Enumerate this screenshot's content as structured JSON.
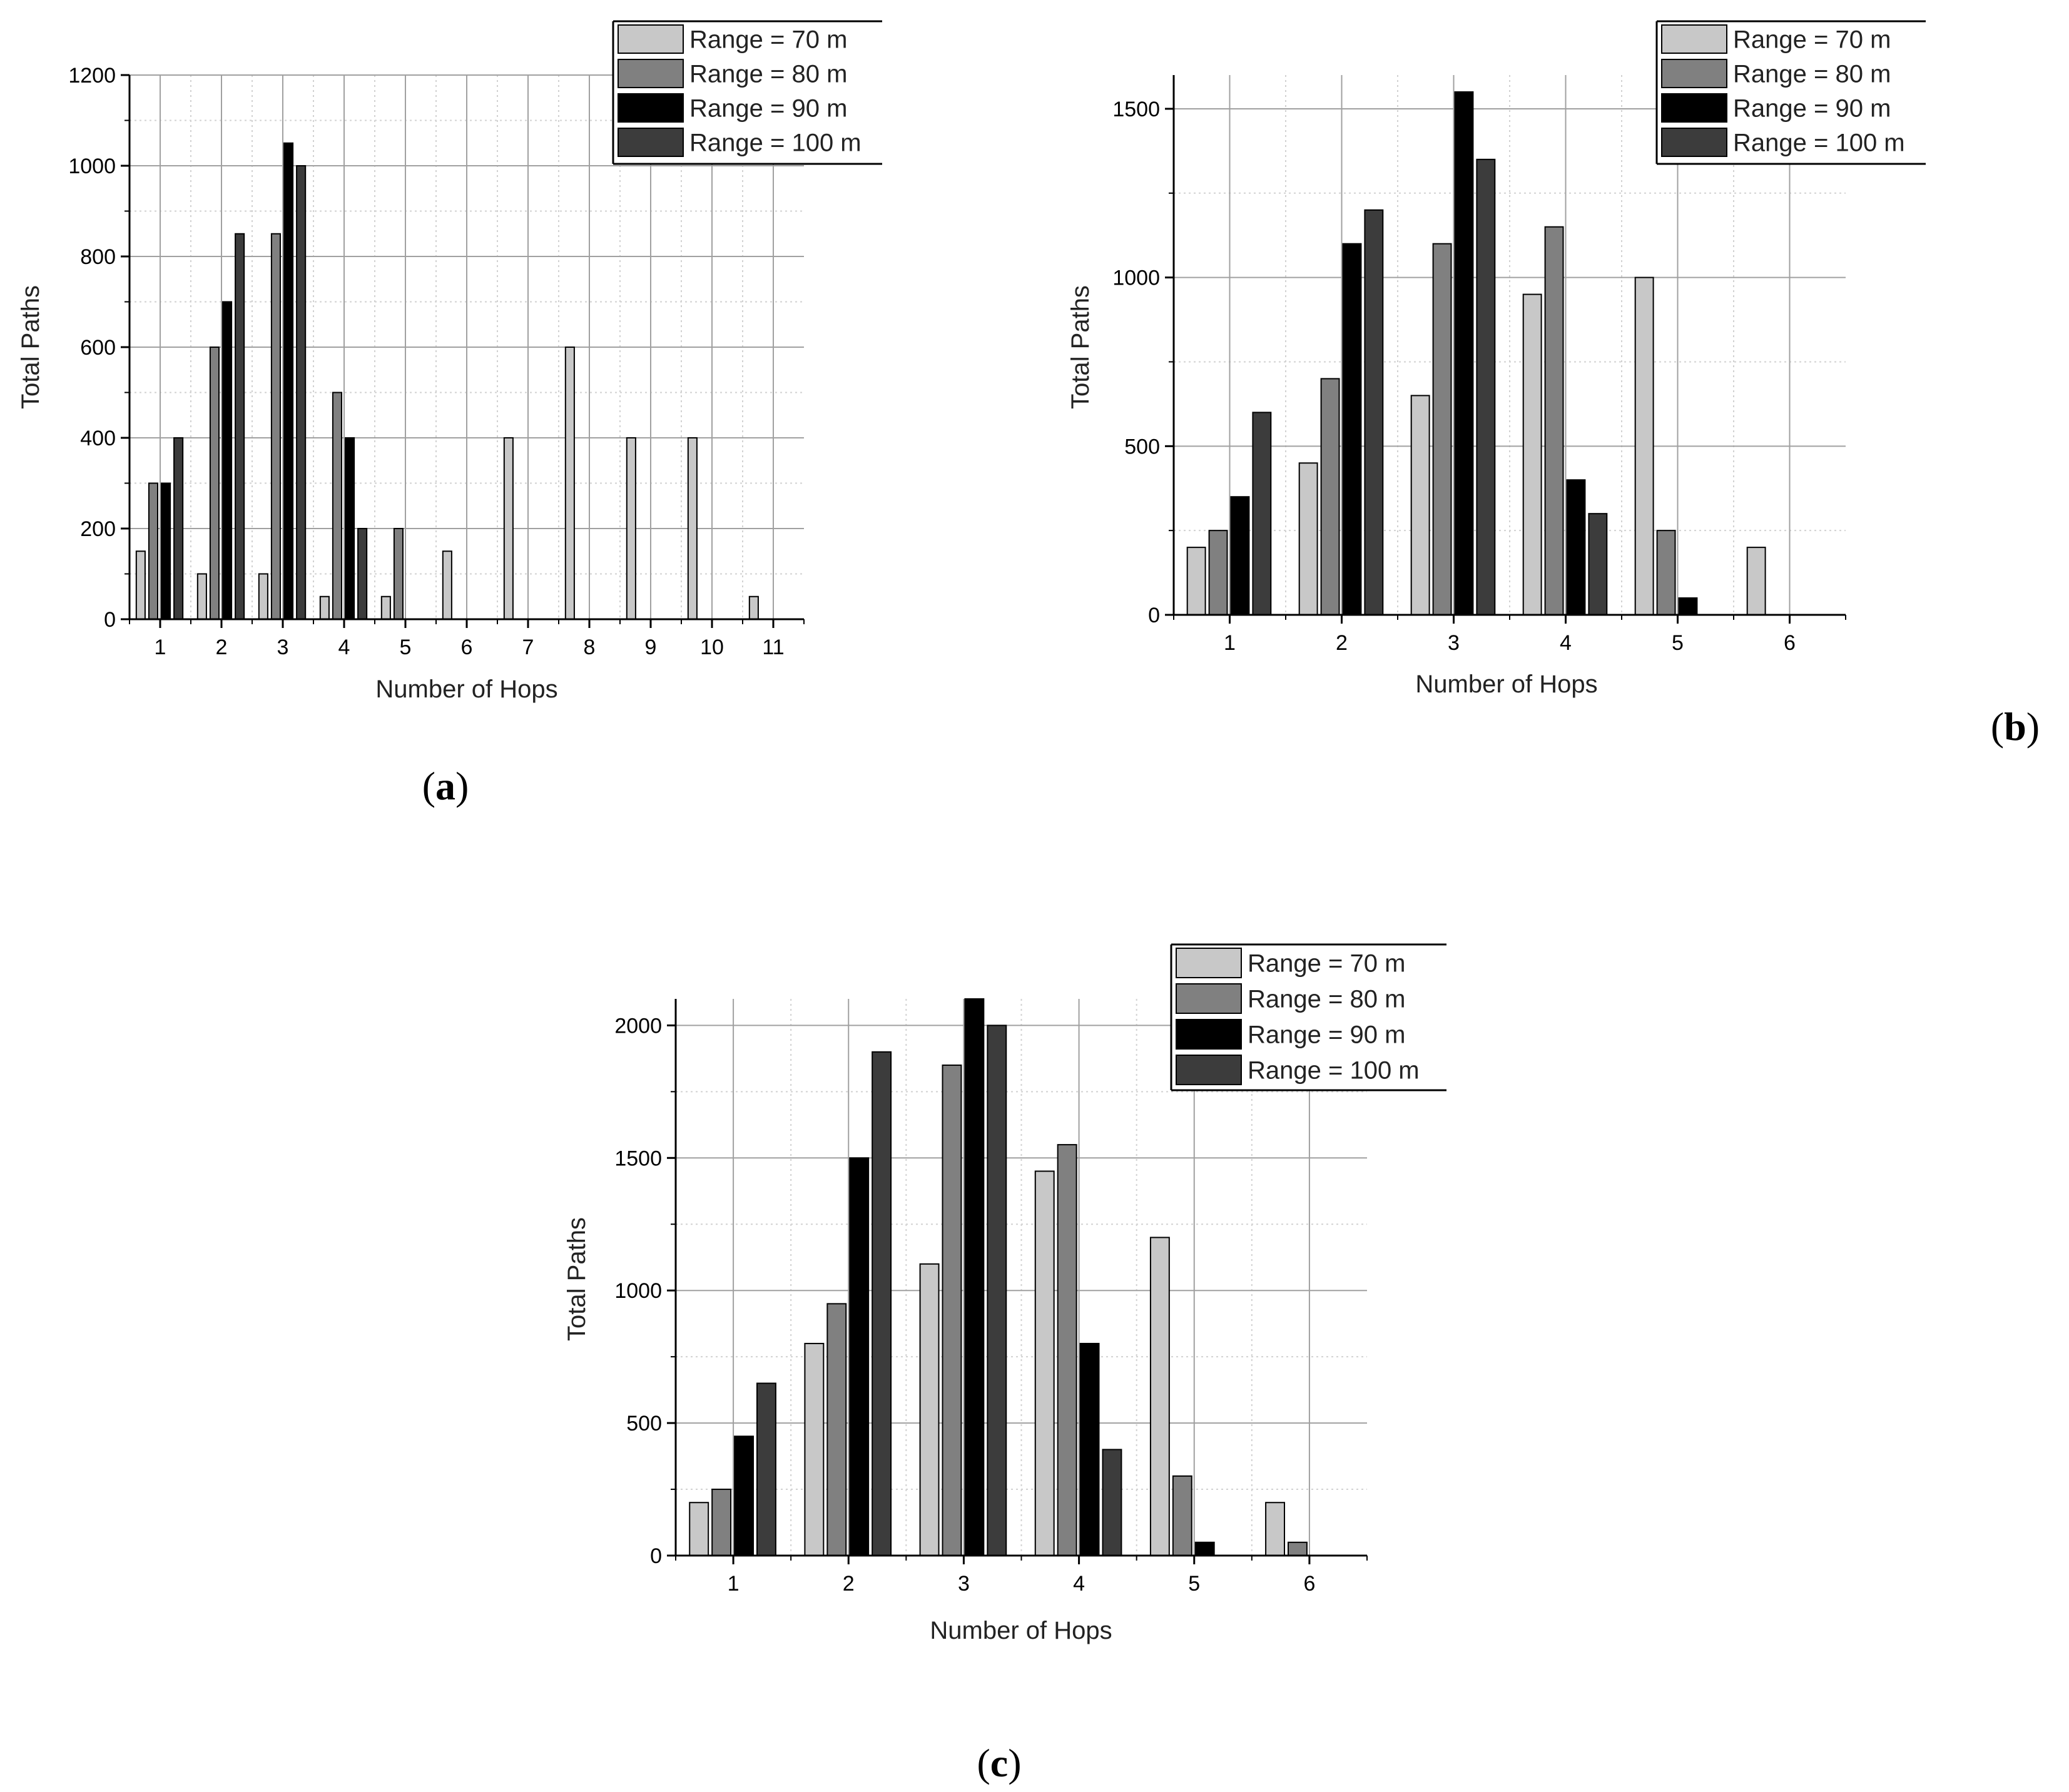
{
  "colors": {
    "range70": "#c8c8c8",
    "range80": "#808080",
    "range90": "#000000",
    "range100": "#3c3c3c",
    "axis": "#000000",
    "grid_major": "#a0a0a0",
    "grid_minor": "#d2d2d2",
    "background": "#ffffff"
  },
  "chart_data": [
    {
      "id": "a",
      "type": "bar",
      "panel_label": "(a)",
      "xlabel": "Number of Hops",
      "ylabel": "Total Paths",
      "categories": [
        "1",
        "2",
        "3",
        "4",
        "5",
        "6",
        "7",
        "8",
        "9",
        "10",
        "11"
      ],
      "ylim": [
        0,
        1200
      ],
      "yticks": [
        0,
        200,
        400,
        600,
        800,
        1000,
        1200
      ],
      "grid": true,
      "legend_position": "top-right",
      "series": [
        {
          "name": "Range = 70 m",
          "color_key": "range70",
          "values": [
            150,
            100,
            100,
            50,
            50,
            150,
            400,
            600,
            400,
            400,
            50
          ]
        },
        {
          "name": "Range = 80 m",
          "color_key": "range80",
          "values": [
            300,
            600,
            850,
            500,
            200,
            0,
            0,
            0,
            0,
            0,
            0
          ]
        },
        {
          "name": "Range = 90 m",
          "color_key": "range90",
          "values": [
            300,
            700,
            1050,
            400,
            0,
            0,
            0,
            0,
            0,
            0,
            0
          ]
        },
        {
          "name": "Range = 100 m",
          "color_key": "range100",
          "values": [
            400,
            850,
            1000,
            200,
            0,
            0,
            0,
            0,
            0,
            0,
            0
          ]
        }
      ]
    },
    {
      "id": "b",
      "type": "bar",
      "panel_label": "(b)",
      "xlabel": "Number of Hops",
      "ylabel": "Total Paths",
      "categories": [
        "1",
        "2",
        "3",
        "4",
        "5",
        "6"
      ],
      "ylim": [
        0,
        1600
      ],
      "yticks": [
        0,
        500,
        1000,
        1500
      ],
      "grid": true,
      "legend_position": "top-right",
      "series": [
        {
          "name": "Range = 70 m",
          "color_key": "range70",
          "values": [
            200,
            450,
            650,
            950,
            1000,
            200
          ]
        },
        {
          "name": "Range = 80 m",
          "color_key": "range80",
          "values": [
            250,
            700,
            1100,
            1150,
            250,
            0
          ]
        },
        {
          "name": "Range = 90 m",
          "color_key": "range90",
          "values": [
            350,
            1100,
            1550,
            400,
            50,
            0
          ]
        },
        {
          "name": "Range = 100 m",
          "color_key": "range100",
          "values": [
            600,
            1200,
            1350,
            300,
            0,
            0
          ]
        }
      ]
    },
    {
      "id": "c",
      "type": "bar",
      "panel_label": "(c)",
      "xlabel": "Number of Hops",
      "ylabel": "Total Paths",
      "categories": [
        "1",
        "2",
        "3",
        "4",
        "5",
        "6"
      ],
      "ylim": [
        0,
        2100
      ],
      "yticks": [
        0,
        500,
        1000,
        1500,
        2000
      ],
      "grid": true,
      "legend_position": "top-right",
      "series": [
        {
          "name": "Range = 70 m",
          "color_key": "range70",
          "values": [
            200,
            800,
            1100,
            1450,
            1200,
            200
          ]
        },
        {
          "name": "Range = 80 m",
          "color_key": "range80",
          "values": [
            250,
            950,
            1850,
            1550,
            300,
            50
          ]
        },
        {
          "name": "Range = 90 m",
          "color_key": "range90",
          "values": [
            450,
            1500,
            2100,
            800,
            50,
            0
          ]
        },
        {
          "name": "Range = 100 m",
          "color_key": "range100",
          "values": [
            650,
            1900,
            2000,
            400,
            0,
            0
          ]
        }
      ]
    }
  ]
}
